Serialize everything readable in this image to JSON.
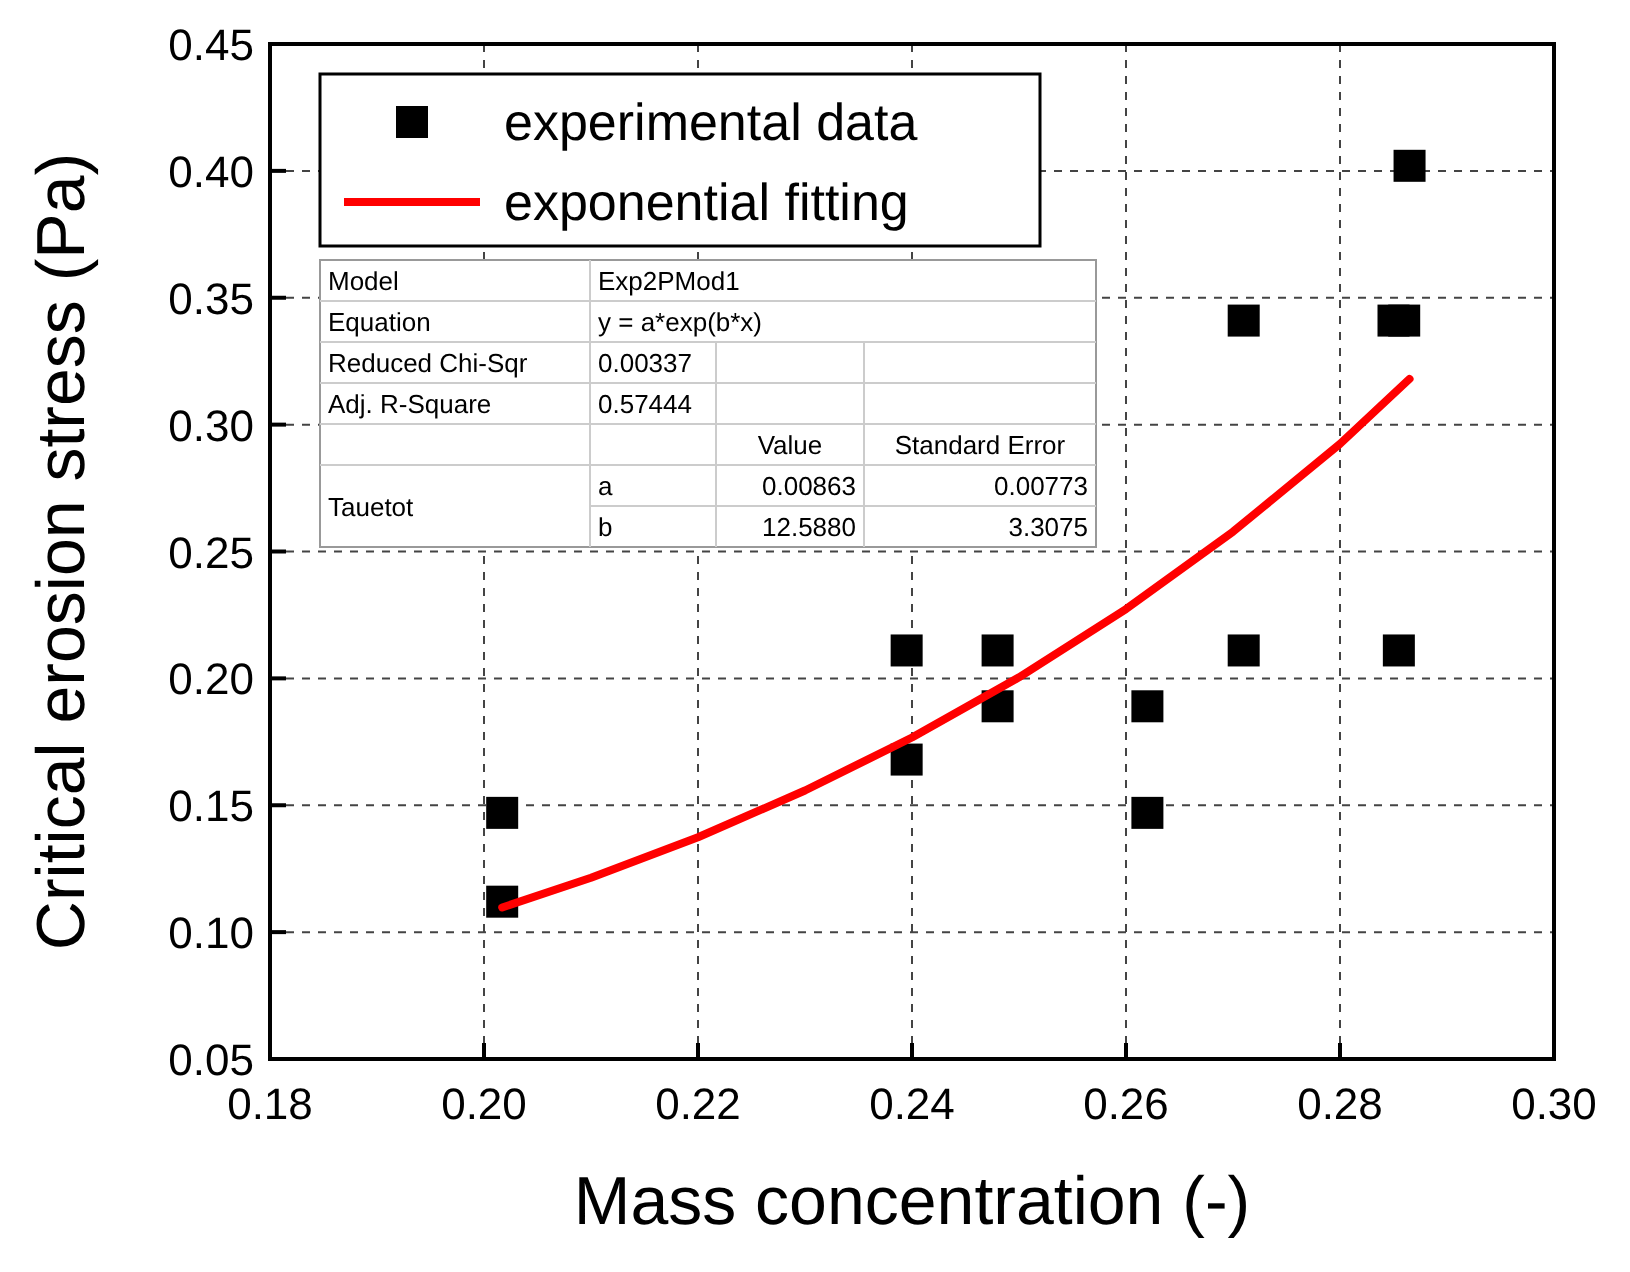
{
  "chart_data": {
    "type": "scatter",
    "xlabel": "Mass concentration (-)",
    "ylabel": "Critical erosion stress (Pa)",
    "xlim": [
      0.18,
      0.3
    ],
    "xticks": [
      {
        "value": 0.18,
        "label": "0.18"
      },
      {
        "value": 0.2,
        "label": "0.20"
      },
      {
        "value": 0.22,
        "label": "0.22"
      },
      {
        "value": 0.24,
        "label": "0.24"
      },
      {
        "value": 0.26,
        "label": "0.26"
      },
      {
        "value": 0.28,
        "label": "0.28"
      },
      {
        "value": 0.3,
        "label": "0.30"
      }
    ],
    "ylim": [
      0.05,
      0.45
    ],
    "yticks": [
      {
        "value": 0.05,
        "label": "0.05"
      },
      {
        "value": 0.1,
        "label": "0.10"
      },
      {
        "value": 0.15,
        "label": "0.15"
      },
      {
        "value": 0.2,
        "label": "0.20"
      },
      {
        "value": 0.25,
        "label": "0.25"
      },
      {
        "value": 0.3,
        "label": "0.30"
      },
      {
        "value": 0.35,
        "label": "0.35"
      },
      {
        "value": 0.4,
        "label": "0.40"
      },
      {
        "value": 0.45,
        "label": "0.45"
      }
    ],
    "grid": true,
    "legend": "top left",
    "series": [
      {
        "name": "experimental data",
        "marker": "square",
        "color": "#000000",
        "x": [
          0.2017,
          0.2017,
          0.2395,
          0.2395,
          0.248,
          0.248,
          0.262,
          0.262,
          0.271,
          0.271,
          0.285,
          0.286,
          0.2855,
          0.2865
        ],
        "values": [
          0.147,
          0.112,
          0.211,
          0.168,
          0.211,
          0.189,
          0.189,
          0.147,
          0.341,
          0.211,
          0.341,
          0.341,
          0.211,
          0.402
        ]
      },
      {
        "name": "exponential fitting",
        "type": "line",
        "marker": "none",
        "line_style": "solid",
        "color": "#ff0000",
        "x": [
          0.2017,
          0.21,
          0.22,
          0.23,
          0.24,
          0.25,
          0.26,
          0.27,
          0.28,
          0.2865
        ],
        "values": [
          0.1097,
          0.1214,
          0.1374,
          0.1558,
          0.1767,
          0.2004,
          0.2273,
          0.2578,
          0.2924,
          0.318
        ]
      }
    ],
    "annotations": [
      "Model",
      "Exp2PMod1",
      "Equation",
      "y = a*exp(b*x)",
      "Reduced Chi-Sqr",
      "0.00337",
      "Adj. R-Square",
      "0.57444",
      "Value",
      "Standard Error",
      "Tauetot",
      "a",
      "0.00863",
      "0.00773",
      "b",
      "12.5880",
      "3.3075"
    ]
  }
}
